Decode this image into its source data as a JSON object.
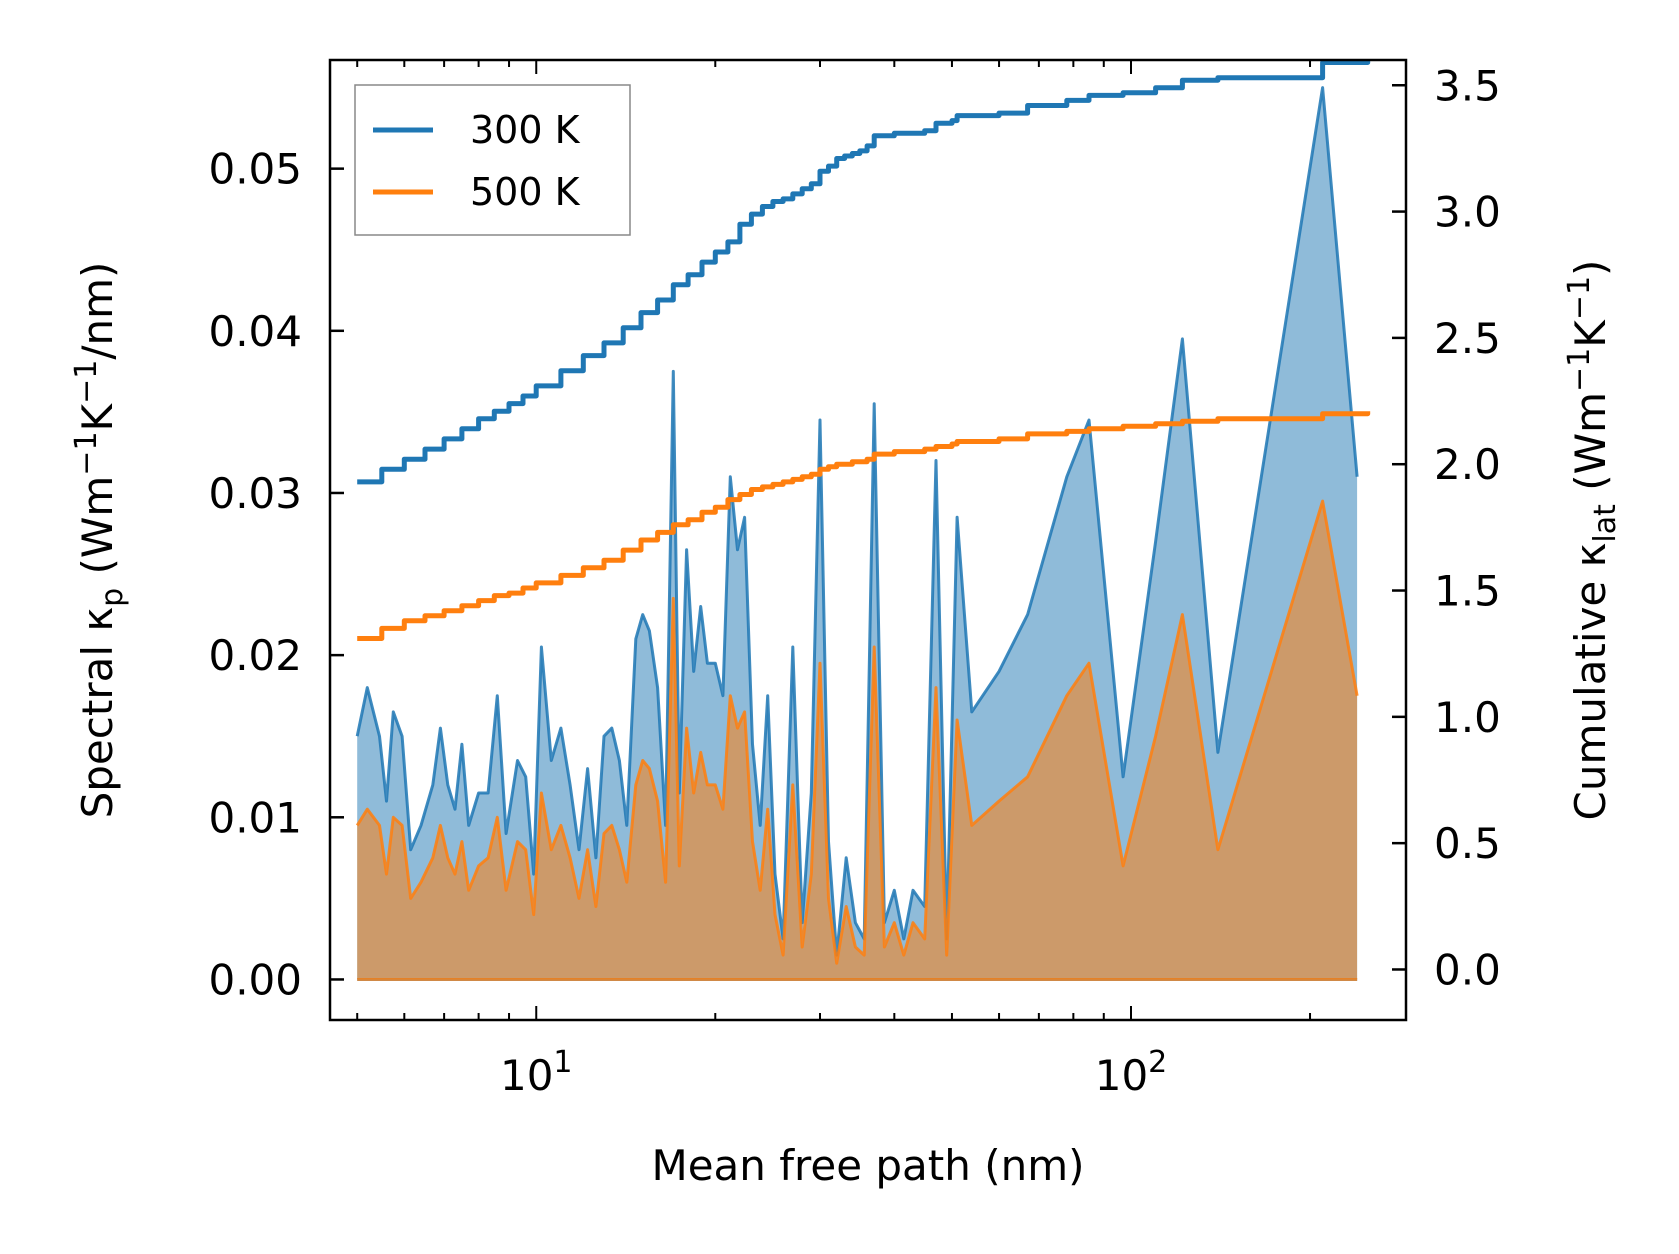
{
  "chart_data": {
    "type": "area",
    "xscale": "log",
    "xlabel": "Mean free path (nm)",
    "ylabel": "Spectral κp (Wm⁻¹K⁻¹/nm)",
    "ylabel_parts": {
      "main": "Spectral κ",
      "sub": "p",
      "open": " (Wm",
      "sup1": "−1",
      "mid": "K",
      "sup2": "−1",
      "close": "/nm)"
    },
    "y2label": "Cumulative κlat (Wm⁻¹K⁻¹)",
    "y2label_parts": {
      "main": "Cumulative κ",
      "sub": "lat",
      "open": " (Wm",
      "sup1": "−1",
      "mid": "K",
      "sup2": "−1",
      "close": ")"
    },
    "xlim": [
      4.5,
      290
    ],
    "ylim": [
      -0.0025,
      0.0567
    ],
    "y2lim": [
      -0.2,
      3.6
    ],
    "xticks_major": [
      {
        "value": 10,
        "base": "10",
        "exp": "1"
      },
      {
        "value": 100,
        "base": "10",
        "exp": "2"
      }
    ],
    "yticks": [
      "0.00",
      "0.01",
      "0.02",
      "0.03",
      "0.04",
      "0.05"
    ],
    "y2ticks": [
      "0.0",
      "0.5",
      "1.0",
      "1.5",
      "2.0",
      "2.5",
      "3.0",
      "3.5"
    ],
    "legend": {
      "placement": "top-left",
      "entries": [
        {
          "label": "300 K",
          "color": "#1f77b4"
        },
        {
          "label": "500 K",
          "color": "#ff7f0e"
        }
      ]
    },
    "series": [
      {
        "name": "300 K",
        "color": "#1f77b4",
        "spectral_peaks": [
          [
            5.0,
            0.015
          ],
          [
            5.2,
            0.018
          ],
          [
            5.45,
            0.015
          ],
          [
            5.6,
            0.011
          ],
          [
            5.75,
            0.0165
          ],
          [
            5.95,
            0.015
          ],
          [
            6.15,
            0.008
          ],
          [
            6.4,
            0.0095
          ],
          [
            6.7,
            0.012
          ],
          [
            6.9,
            0.0155
          ],
          [
            7.1,
            0.012
          ],
          [
            7.3,
            0.0105
          ],
          [
            7.5,
            0.0145
          ],
          [
            7.7,
            0.0095
          ],
          [
            8.0,
            0.0115
          ],
          [
            8.3,
            0.0115
          ],
          [
            8.6,
            0.0175
          ],
          [
            8.9,
            0.009
          ],
          [
            9.3,
            0.0135
          ],
          [
            9.6,
            0.0125
          ],
          [
            9.9,
            0.0065
          ],
          [
            10.2,
            0.0205
          ],
          [
            10.6,
            0.0135
          ],
          [
            11.0,
            0.0155
          ],
          [
            11.4,
            0.012
          ],
          [
            11.8,
            0.008
          ],
          [
            12.2,
            0.013
          ],
          [
            12.6,
            0.0075
          ],
          [
            13.0,
            0.015
          ],
          [
            13.4,
            0.0155
          ],
          [
            13.8,
            0.0135
          ],
          [
            14.2,
            0.0095
          ],
          [
            14.7,
            0.021
          ],
          [
            15.1,
            0.0225
          ],
          [
            15.5,
            0.0215
          ],
          [
            16.0,
            0.018
          ],
          [
            16.5,
            0.0095
          ],
          [
            17.0,
            0.0375
          ],
          [
            17.4,
            0.0115
          ],
          [
            17.9,
            0.0265
          ],
          [
            18.4,
            0.019
          ],
          [
            18.9,
            0.023
          ],
          [
            19.4,
            0.0195
          ],
          [
            20.0,
            0.0195
          ],
          [
            20.6,
            0.0175
          ],
          [
            21.2,
            0.031
          ],
          [
            21.8,
            0.0265
          ],
          [
            22.4,
            0.0285
          ],
          [
            23.1,
            0.0145
          ],
          [
            23.8,
            0.0095
          ],
          [
            24.5,
            0.0175
          ],
          [
            25.2,
            0.0065
          ],
          [
            26.0,
            0.0025
          ],
          [
            27.0,
            0.0205
          ],
          [
            28.0,
            0.0035
          ],
          [
            29.0,
            0.0115
          ],
          [
            30.0,
            0.0345
          ],
          [
            31.0,
            0.0085
          ],
          [
            32.0,
            0.0015
          ],
          [
            33.2,
            0.0075
          ],
          [
            34.4,
            0.0035
          ],
          [
            35.6,
            0.0025
          ],
          [
            37.0,
            0.0355
          ],
          [
            38.5,
            0.0035
          ],
          [
            40.0,
            0.0055
          ],
          [
            41.5,
            0.0025
          ],
          [
            43.0,
            0.0055
          ],
          [
            45.0,
            0.0045
          ],
          [
            47.0,
            0.032
          ],
          [
            49.0,
            0.0025
          ],
          [
            51.0,
            0.0285
          ],
          [
            54.0,
            0.0165
          ],
          [
            60.0,
            0.019
          ],
          [
            67.0,
            0.0225
          ],
          [
            78.0,
            0.031
          ],
          [
            85.0,
            0.0345
          ],
          [
            97.0,
            0.0125
          ],
          [
            110.0,
            0.027
          ],
          [
            122.0,
            0.0395
          ],
          [
            140.0,
            0.014
          ],
          [
            210.0,
            0.055
          ],
          [
            240.0,
            0.031
          ]
        ],
        "cumulative": [
          [
            5.0,
            1.93
          ],
          [
            5.5,
            1.98
          ],
          [
            6.0,
            2.02
          ],
          [
            6.5,
            2.06
          ],
          [
            7.0,
            2.1
          ],
          [
            7.5,
            2.14
          ],
          [
            8.0,
            2.18
          ],
          [
            8.5,
            2.21
          ],
          [
            9.0,
            2.24
          ],
          [
            9.5,
            2.27
          ],
          [
            10.0,
            2.31
          ],
          [
            11.0,
            2.37
          ],
          [
            12.0,
            2.43
          ],
          [
            13.0,
            2.48
          ],
          [
            14.0,
            2.54
          ],
          [
            15.0,
            2.6
          ],
          [
            16.0,
            2.65
          ],
          [
            17.0,
            2.71
          ],
          [
            18.0,
            2.75
          ],
          [
            19.0,
            2.8
          ],
          [
            20.0,
            2.84
          ],
          [
            21.0,
            2.88
          ],
          [
            22.0,
            2.95
          ],
          [
            23.0,
            2.99
          ],
          [
            24.0,
            3.02
          ],
          [
            25.0,
            3.04
          ],
          [
            26.0,
            3.05
          ],
          [
            27.0,
            3.07
          ],
          [
            28.0,
            3.09
          ],
          [
            29.0,
            3.11
          ],
          [
            30.0,
            3.16
          ],
          [
            31.0,
            3.18
          ],
          [
            32.0,
            3.21
          ],
          [
            33.0,
            3.22
          ],
          [
            34.0,
            3.23
          ],
          [
            35.0,
            3.24
          ],
          [
            36.0,
            3.26
          ],
          [
            37.0,
            3.3
          ],
          [
            40.0,
            3.31
          ],
          [
            45.0,
            3.32
          ],
          [
            47.0,
            3.35
          ],
          [
            50.0,
            3.36
          ],
          [
            51.0,
            3.38
          ],
          [
            60.0,
            3.39
          ],
          [
            67.0,
            3.42
          ],
          [
            78.0,
            3.44
          ],
          [
            85.0,
            3.46
          ],
          [
            97.0,
            3.47
          ],
          [
            110.0,
            3.49
          ],
          [
            122.0,
            3.52
          ],
          [
            140.0,
            3.53
          ],
          [
            205.0,
            3.53
          ],
          [
            210.0,
            3.59
          ],
          [
            250.0,
            3.6
          ]
        ]
      },
      {
        "name": "500 K",
        "color": "#ff7f0e",
        "spectral_peaks": [
          [
            5.0,
            0.0095
          ],
          [
            5.2,
            0.0105
          ],
          [
            5.45,
            0.0095
          ],
          [
            5.6,
            0.0065
          ],
          [
            5.75,
            0.01
          ],
          [
            5.95,
            0.0095
          ],
          [
            6.15,
            0.005
          ],
          [
            6.4,
            0.006
          ],
          [
            6.7,
            0.0075
          ],
          [
            6.9,
            0.0095
          ],
          [
            7.1,
            0.0075
          ],
          [
            7.3,
            0.0065
          ],
          [
            7.5,
            0.0085
          ],
          [
            7.7,
            0.0055
          ],
          [
            8.0,
            0.007
          ],
          [
            8.3,
            0.0075
          ],
          [
            8.6,
            0.01
          ],
          [
            8.9,
            0.0055
          ],
          [
            9.3,
            0.0085
          ],
          [
            9.6,
            0.008
          ],
          [
            9.9,
            0.004
          ],
          [
            10.2,
            0.0115
          ],
          [
            10.6,
            0.008
          ],
          [
            11.0,
            0.0095
          ],
          [
            11.4,
            0.0075
          ],
          [
            11.8,
            0.005
          ],
          [
            12.2,
            0.008
          ],
          [
            12.6,
            0.0045
          ],
          [
            13.0,
            0.009
          ],
          [
            13.4,
            0.0095
          ],
          [
            13.8,
            0.008
          ],
          [
            14.2,
            0.006
          ],
          [
            14.7,
            0.012
          ],
          [
            15.1,
            0.0135
          ],
          [
            15.5,
            0.013
          ],
          [
            16.0,
            0.011
          ],
          [
            16.5,
            0.006
          ],
          [
            17.0,
            0.0235
          ],
          [
            17.4,
            0.007
          ],
          [
            17.9,
            0.0155
          ],
          [
            18.4,
            0.0115
          ],
          [
            18.9,
            0.014
          ],
          [
            19.4,
            0.012
          ],
          [
            20.0,
            0.012
          ],
          [
            20.6,
            0.0105
          ],
          [
            21.2,
            0.0175
          ],
          [
            21.8,
            0.0155
          ],
          [
            22.4,
            0.0165
          ],
          [
            23.1,
            0.0085
          ],
          [
            23.8,
            0.0055
          ],
          [
            24.5,
            0.0105
          ],
          [
            25.2,
            0.004
          ],
          [
            26.0,
            0.0015
          ],
          [
            27.0,
            0.012
          ],
          [
            28.0,
            0.002
          ],
          [
            29.0,
            0.0065
          ],
          [
            30.0,
            0.0195
          ],
          [
            31.0,
            0.005
          ],
          [
            32.0,
            0.001
          ],
          [
            33.2,
            0.0045
          ],
          [
            34.4,
            0.002
          ],
          [
            35.6,
            0.0015
          ],
          [
            37.0,
            0.0205
          ],
          [
            38.5,
            0.002
          ],
          [
            40.0,
            0.0035
          ],
          [
            41.5,
            0.0015
          ],
          [
            43.0,
            0.0035
          ],
          [
            45.0,
            0.0025
          ],
          [
            47.0,
            0.018
          ],
          [
            49.0,
            0.0015
          ],
          [
            51.0,
            0.016
          ],
          [
            54.0,
            0.0095
          ],
          [
            60.0,
            0.011
          ],
          [
            67.0,
            0.0125
          ],
          [
            78.0,
            0.0175
          ],
          [
            85.0,
            0.0195
          ],
          [
            97.0,
            0.007
          ],
          [
            110.0,
            0.015
          ],
          [
            122.0,
            0.0225
          ],
          [
            140.0,
            0.008
          ],
          [
            210.0,
            0.0295
          ],
          [
            240.0,
            0.0175
          ]
        ],
        "cumulative": [
          [
            5.0,
            1.31
          ],
          [
            5.5,
            1.35
          ],
          [
            6.0,
            1.38
          ],
          [
            6.5,
            1.4
          ],
          [
            7.0,
            1.42
          ],
          [
            7.5,
            1.44
          ],
          [
            8.0,
            1.46
          ],
          [
            8.5,
            1.48
          ],
          [
            9.0,
            1.49
          ],
          [
            9.5,
            1.51
          ],
          [
            10.0,
            1.53
          ],
          [
            11.0,
            1.56
          ],
          [
            12.0,
            1.59
          ],
          [
            13.0,
            1.62
          ],
          [
            14.0,
            1.66
          ],
          [
            15.0,
            1.7
          ],
          [
            16.0,
            1.73
          ],
          [
            17.0,
            1.76
          ],
          [
            18.0,
            1.78
          ],
          [
            19.0,
            1.81
          ],
          [
            20.0,
            1.83
          ],
          [
            21.0,
            1.86
          ],
          [
            22.0,
            1.88
          ],
          [
            23.0,
            1.9
          ],
          [
            24.0,
            1.91
          ],
          [
            25.0,
            1.92
          ],
          [
            26.0,
            1.93
          ],
          [
            27.0,
            1.94
          ],
          [
            28.0,
            1.95
          ],
          [
            29.0,
            1.96
          ],
          [
            30.0,
            1.98
          ],
          [
            31.0,
            1.99
          ],
          [
            32.0,
            2.0
          ],
          [
            34.0,
            2.01
          ],
          [
            36.0,
            2.02
          ],
          [
            37.0,
            2.04
          ],
          [
            40.0,
            2.05
          ],
          [
            45.0,
            2.06
          ],
          [
            47.0,
            2.07
          ],
          [
            50.0,
            2.08
          ],
          [
            51.0,
            2.09
          ],
          [
            60.0,
            2.1
          ],
          [
            67.0,
            2.12
          ],
          [
            78.0,
            2.13
          ],
          [
            85.0,
            2.14
          ],
          [
            97.0,
            2.15
          ],
          [
            110.0,
            2.16
          ],
          [
            122.0,
            2.17
          ],
          [
            140.0,
            2.18
          ],
          [
            205.0,
            2.18
          ],
          [
            210.0,
            2.2
          ],
          [
            250.0,
            2.21
          ]
        ]
      }
    ]
  }
}
